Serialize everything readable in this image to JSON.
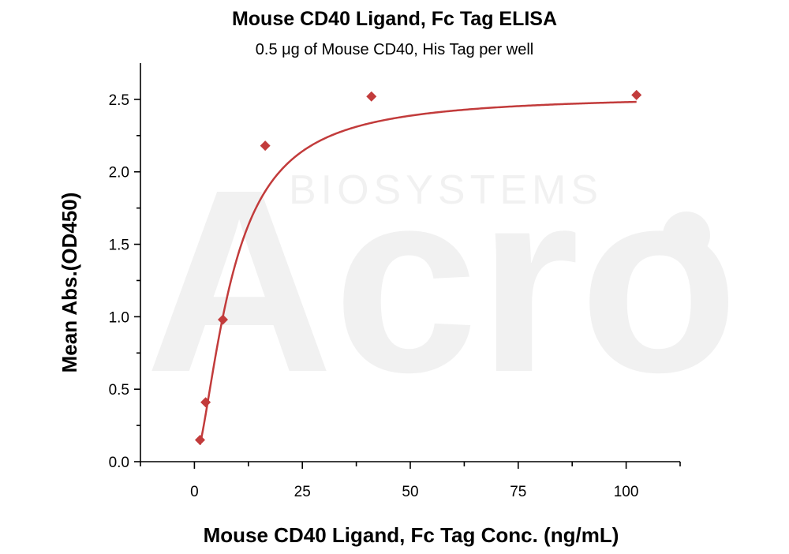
{
  "chart_data": {
    "type": "scatter",
    "title": "Mouse CD40 Ligand, Fc Tag ELISA",
    "subtitle": "0.5 μg of Mouse CD40, His Tag per well",
    "xlabel": "Mouse CD40 Ligand, Fc Tag Conc. (ng/mL)",
    "ylabel": "Mean Abs.(OD450)",
    "xlim": [
      -12.5,
      112.5
    ],
    "ylim": [
      0,
      2.75
    ],
    "xticks": [
      0,
      25,
      50,
      75,
      100
    ],
    "yticks": [
      0.0,
      0.5,
      1.0,
      1.5,
      2.0,
      2.5
    ],
    "xtick_labels": [
      "0",
      "25",
      "50",
      "75",
      "100"
    ],
    "ytick_labels": [
      "0.0",
      "0.5",
      "1.0",
      "1.5",
      "2.0",
      "2.5"
    ],
    "series": [
      {
        "x": [
          1.3,
          2.6,
          6.6,
          16.4,
          41.0,
          102.4
        ],
        "y": [
          0.15,
          0.41,
          0.98,
          2.18,
          2.52,
          2.53
        ],
        "marker": "diamond",
        "color": "#c23b3b"
      }
    ],
    "fit_curve": {
      "type": "4PL",
      "color": "#c23b3b",
      "params": {
        "bottom": 0.0,
        "top": 2.53,
        "ec50": 8.6,
        "hill": 1.6
      }
    },
    "grid": false,
    "legend": "none"
  },
  "watermark": {
    "text": "Acro",
    "subtext": "BIOSYSTEMS"
  }
}
